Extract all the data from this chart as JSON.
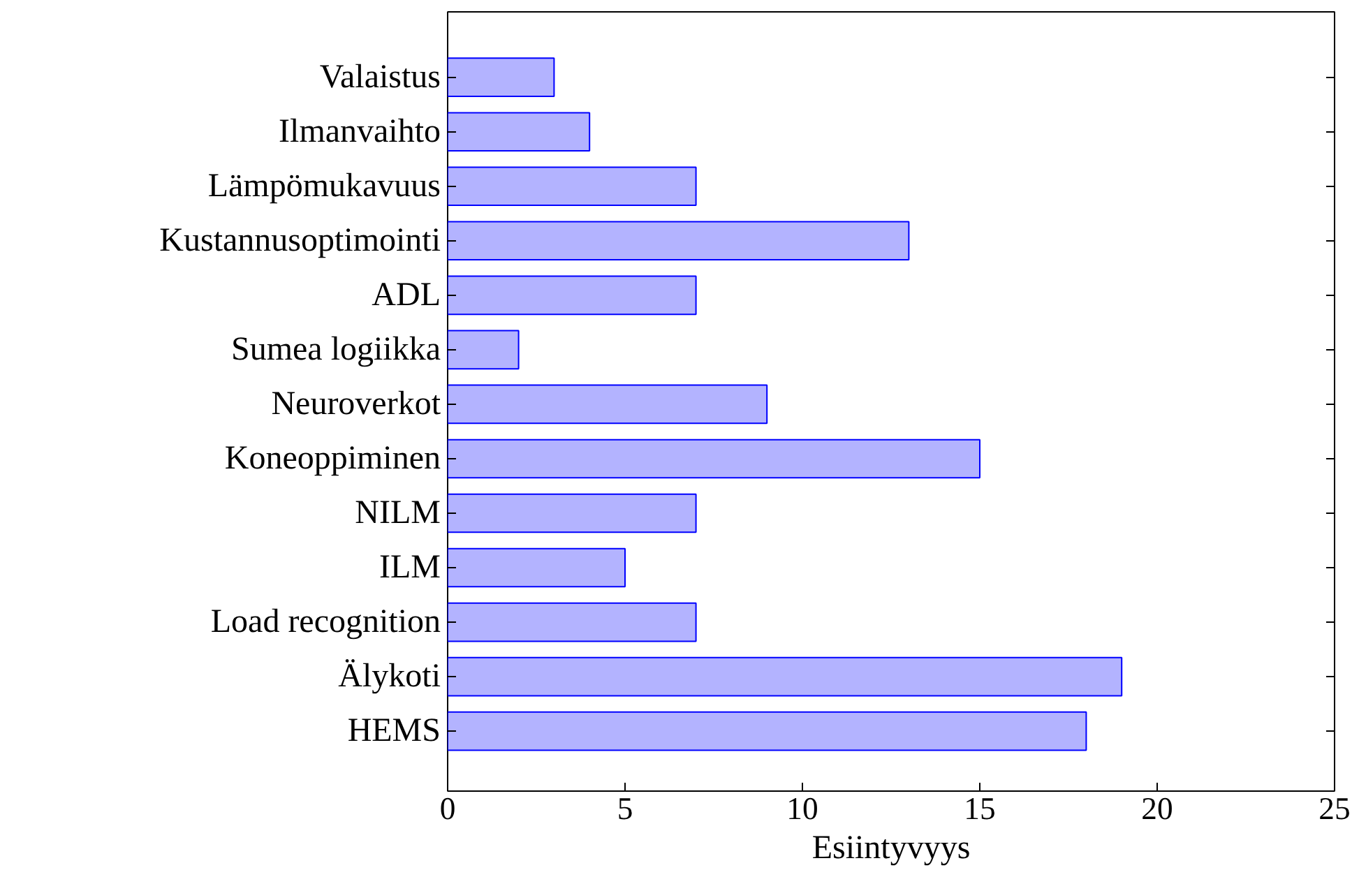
{
  "chart_data": {
    "type": "bar",
    "orientation": "horizontal",
    "xlabel": "Esiintyvyys",
    "categories": [
      "Valaistus",
      "Ilmanvaihto",
      "Lämpömukavuus",
      "Kustannusoptimointi",
      "ADL",
      "Sumea logiikka",
      "Neuroverkot",
      "Koneoppiminen",
      "NILM",
      "ILM",
      "Load recognition",
      "Älykoti",
      "HEMS"
    ],
    "values": [
      3,
      4,
      7,
      13,
      7,
      2,
      9,
      15,
      7,
      5,
      7,
      19,
      18
    ],
    "color": "#b3b3ff",
    "xlim": [
      0,
      25
    ],
    "xticks": [
      0,
      5,
      10,
      15,
      20,
      25
    ],
    "grid": false
  }
}
